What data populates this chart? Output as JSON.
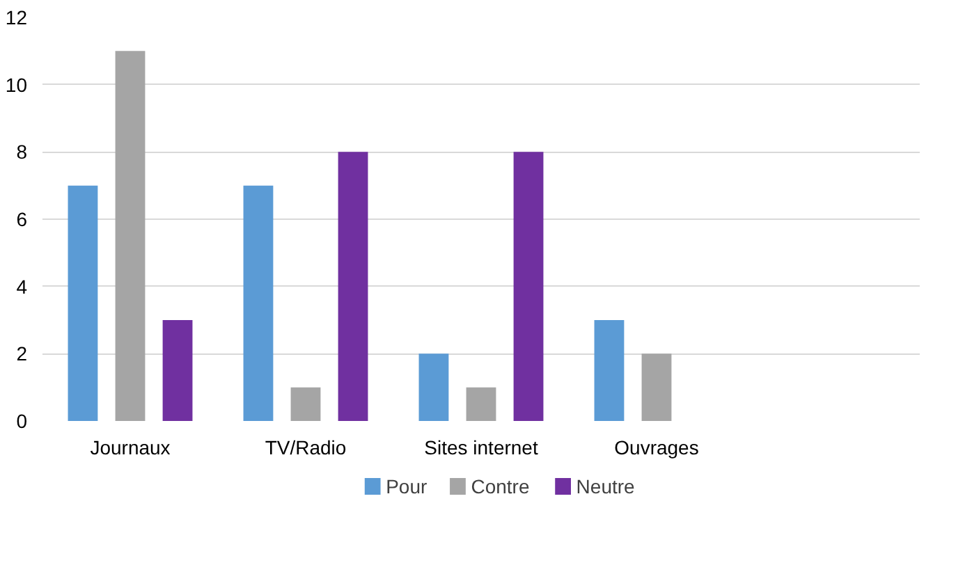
{
  "chart_data": {
    "type": "bar",
    "categories": [
      "Journaux",
      "TV/Radio",
      "Sites internet",
      "Ouvrages",
      null
    ],
    "series": [
      {
        "name": "Pour",
        "color": "#5b9bd5",
        "values": [
          7,
          7,
          2,
          3,
          null
        ]
      },
      {
        "name": "Contre",
        "color": "#a5a5a5",
        "values": [
          11,
          1,
          1,
          2,
          null
        ]
      },
      {
        "name": "Neutre",
        "color": "#7030a0",
        "values": [
          3,
          8,
          8,
          null,
          null
        ]
      }
    ],
    "ylim": [
      0,
      12
    ],
    "yticks": [
      0,
      2,
      4,
      6,
      8,
      10,
      12
    ],
    "grid": "y",
    "legend": "bottom"
  }
}
